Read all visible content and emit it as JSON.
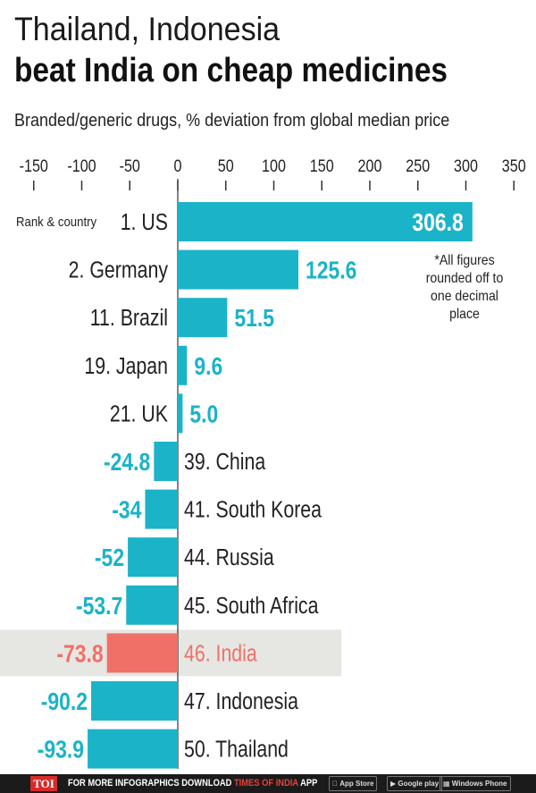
{
  "title_line1": "Thailand, Indonesia",
  "title_line2": "beat India on cheap medicines",
  "subtitle": "Branded/generic drugs, % deviation from global median price",
  "rank_label": "Rank & country",
  "note": [
    "*All figures",
    "rounded off to",
    "one decimal",
    "place"
  ],
  "colors": {
    "bar": "#1bb3c8",
    "highlight_bar": "#f07068",
    "highlight_band": "#e6e6e2",
    "text": "#222222"
  },
  "chart_data": {
    "type": "bar",
    "orientation": "horizontal",
    "xlim": [
      -150,
      350
    ],
    "xticks": [
      -150,
      -100,
      -50,
      0,
      50,
      100,
      150,
      200,
      250,
      300,
      350
    ],
    "xtick_labels": [
      "-150",
      "-100",
      "-50",
      "0",
      "50",
      "100",
      "150",
      "200",
      "250",
      "300",
      "350"
    ],
    "categories": [
      "1. US",
      "2. Germany",
      "11. Brazil",
      "19. Japan",
      "21. UK",
      "39. China",
      "41. South Korea",
      "44. Russia",
      "45. South Africa",
      "46. India",
      "47. Indonesia",
      "50. Thailand"
    ],
    "values": [
      306.8,
      125.6,
      51.5,
      9.6,
      5.0,
      -24.8,
      -34,
      -52,
      -53.7,
      -73.8,
      -90.2,
      -93.9
    ],
    "value_labels": [
      "306.8",
      "125.6",
      "51.5",
      "9.6",
      "5.0",
      "-24.8",
      "-34",
      "-52",
      "-53.7",
      "-73.8",
      "-90.2",
      "-93.9"
    ],
    "highlight": "46. India",
    "grid": false
  },
  "footer": {
    "logo": "TOI",
    "text_prefix": "FOR MORE  INFOGRAPHICS DOWNLOAD ",
    "text_brand": "TIMES OF INDIA",
    "text_suffix": " APP",
    "app_store": "App Store",
    "google_play": "Google play",
    "windows_phone": "Windows Phone"
  }
}
